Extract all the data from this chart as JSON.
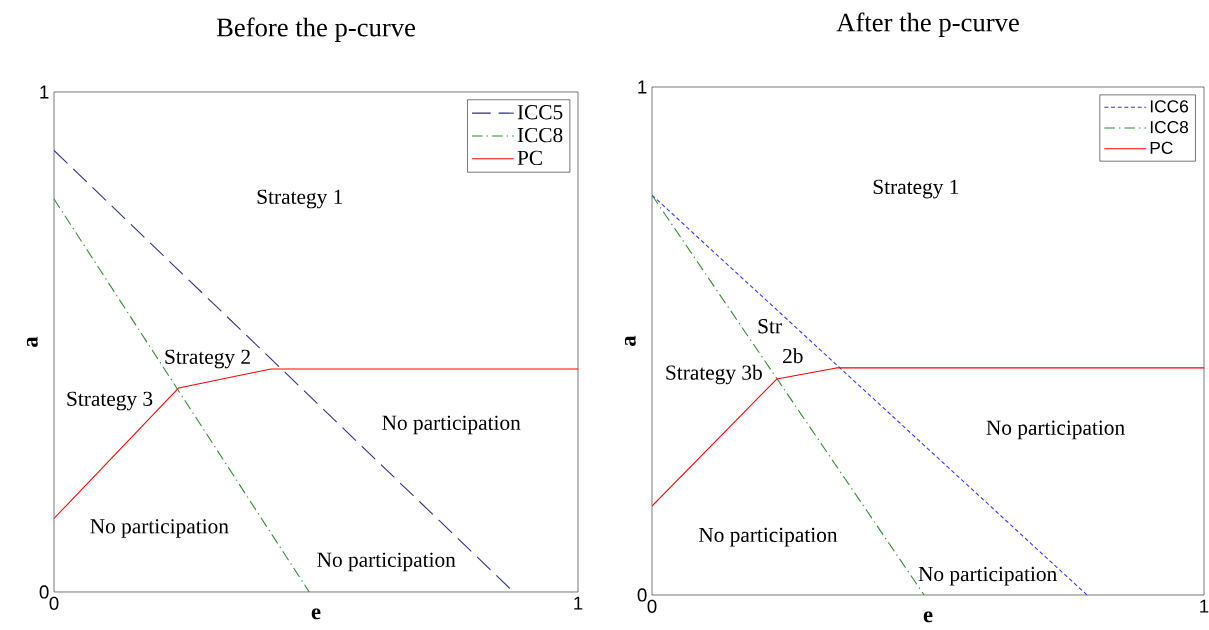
{
  "chart_data": [
    {
      "type": "line",
      "title": "Before the p-curve",
      "xlabel": "e",
      "ylabel": "a",
      "xlim": [
        0,
        1
      ],
      "ylim": [
        0,
        1
      ],
      "xticks": [
        0,
        1
      ],
      "yticks": [
        0,
        1
      ],
      "grid": false,
      "legend": "top right",
      "marker": "none",
      "series": [
        {
          "name": "ICC5",
          "color": "#2e2e8a",
          "line_style": "dashed",
          "x": [
            0,
            0.877
          ],
          "values": [
            0.883,
            0
          ]
        },
        {
          "name": "ICC8",
          "color": "#2e8b2e",
          "line_style": "dashdot",
          "x": [
            0,
            0.487
          ],
          "values": [
            0.786,
            0
          ]
        },
        {
          "name": "PC",
          "color": "#ff0000",
          "line_style": "solid",
          "x": [
            0,
            0.238,
            0.414,
            1
          ],
          "values": [
            0.147,
            0.408,
            0.446,
            0.446
          ]
        }
      ],
      "annotations": [
        "Strategy 1",
        "Strategy 2",
        "Strategy 3",
        "No participation",
        "No participation",
        "No participation"
      ]
    },
    {
      "type": "line",
      "title": "After the p-curve",
      "xlabel": "e",
      "ylabel": "a",
      "xlim": [
        0,
        1
      ],
      "ylim": [
        0,
        1
      ],
      "xticks": [
        0,
        1
      ],
      "yticks": [
        0,
        1
      ],
      "grid": false,
      "legend": "top right",
      "marker": "none",
      "series": [
        {
          "name": "ICC6",
          "color": "#3333ff",
          "line_style": "dotted",
          "x": [
            0,
            0.788
          ],
          "values": [
            0.787,
            0
          ]
        },
        {
          "name": "ICC8",
          "color": "#2e8b2e",
          "line_style": "dashdot",
          "x": [
            0,
            0.493
          ],
          "values": [
            0.787,
            0
          ]
        },
        {
          "name": "PC",
          "color": "#ff0000",
          "line_style": "solid",
          "x": [
            0,
            0.226,
            0.334,
            1
          ],
          "values": [
            0.175,
            0.425,
            0.447,
            0.447
          ]
        }
      ],
      "annotations": [
        "Strategy 1",
        "Str",
        "2b",
        "Strategy 3b",
        "No participation",
        "No participation",
        "No participation"
      ]
    }
  ]
}
